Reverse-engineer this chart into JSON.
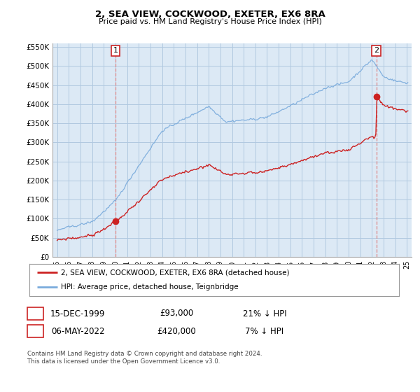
{
  "title": "2, SEA VIEW, COCKWOOD, EXETER, EX6 8RA",
  "subtitle": "Price paid vs. HM Land Registry's House Price Index (HPI)",
  "ylim": [
    0,
    560000
  ],
  "yticks": [
    0,
    50000,
    100000,
    150000,
    200000,
    250000,
    300000,
    350000,
    400000,
    450000,
    500000,
    550000
  ],
  "ytick_labels": [
    "£0",
    "£50K",
    "£100K",
    "£150K",
    "£200K",
    "£250K",
    "£300K",
    "£350K",
    "£400K",
    "£450K",
    "£500K",
    "£550K"
  ],
  "hpi_color": "#7aabdc",
  "price_color": "#cc2222",
  "vline_color": "#dd8888",
  "sale1_date_x": 2000.0,
  "sale1_price": 93000,
  "sale2_date_x": 2022.37,
  "sale2_price": 420000,
  "legend_line1": "2, SEA VIEW, COCKWOOD, EXETER, EX6 8RA (detached house)",
  "legend_line2": "HPI: Average price, detached house, Teignbridge",
  "table_row1": [
    "1",
    "15-DEC-1999",
    "£93,000",
    "21% ↓ HPI"
  ],
  "table_row2": [
    "2",
    "06-MAY-2022",
    "£420,000",
    "7% ↓ HPI"
  ],
  "footnote": "Contains HM Land Registry data © Crown copyright and database right 2024.\nThis data is licensed under the Open Government Licence v3.0.",
  "bg_color": "#ffffff",
  "chart_bg_color": "#dce9f5",
  "grid_color": "#b0c8e0",
  "xlim_min": 1994.6,
  "xlim_max": 2025.4,
  "hpi_seed": 42,
  "price_seed": 99
}
